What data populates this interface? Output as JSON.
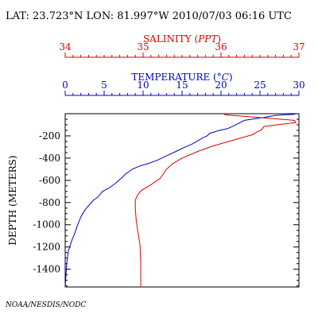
{
  "header": {
    "position_line": "LAT: 23.723°N LON: 81.997°W 2010/07/03 06:16 UTC"
  },
  "footer": {
    "credit": "NOAA/NESDIS/NODC"
  },
  "colors": {
    "salinity": "#dd0000",
    "temperature": "#0000cc",
    "frame": "#000000"
  },
  "chart_data": {
    "type": "line",
    "title": "LAT: 23.723°N LON: 81.997°W 2010/07/03 06:16 UTC",
    "ylabel": "DEPTH (METERS)",
    "ylim": [
      0,
      1560
    ],
    "y_inverted": true,
    "y_ticks": [
      {
        "value": 200,
        "label": "-200"
      },
      {
        "value": 400,
        "label": "-400"
      },
      {
        "value": 600,
        "label": "-600"
      },
      {
        "value": 800,
        "label": "-800"
      },
      {
        "value": 1000,
        "label": "-1000"
      },
      {
        "value": 1200,
        "label": "-1200"
      },
      {
        "value": 1400,
        "label": "-1400"
      }
    ],
    "grid": false,
    "axes": {
      "salinity": {
        "label_prefix": "SALINITY (",
        "label_unit": "PPT",
        "label_suffix": ")",
        "range": [
          34,
          37
        ],
        "ticks": [
          "34",
          "35",
          "36",
          "37"
        ],
        "color": "#dd0000"
      },
      "temperature": {
        "label_prefix": "TEMPERATURE (",
        "label_unit": "°C",
        "label_suffix": ")",
        "range": [
          0,
          30
        ],
        "ticks": [
          "0",
          "5",
          "10",
          "15",
          "20",
          "25",
          "30"
        ],
        "color": "#0000cc"
      }
    },
    "series": [
      {
        "name": "TEMPERATURE",
        "axis": "temperature",
        "color": "#0000cc",
        "points": [
          [
            29.6,
            0
          ],
          [
            29.4,
            5
          ],
          [
            28.2,
            10
          ],
          [
            27.0,
            15
          ],
          [
            25.8,
            30
          ],
          [
            23.0,
            60
          ],
          [
            21.6,
            110
          ],
          [
            20.8,
            135
          ],
          [
            19.8,
            150
          ],
          [
            18.6,
            175
          ],
          [
            18.2,
            200
          ],
          [
            17.6,
            220
          ],
          [
            17.0,
            245
          ],
          [
            16.4,
            270
          ],
          [
            15.4,
            300
          ],
          [
            14.2,
            340
          ],
          [
            13.0,
            380
          ],
          [
            11.8,
            420
          ],
          [
            10.6,
            450
          ],
          [
            9.6,
            470
          ],
          [
            8.6,
            500
          ],
          [
            7.8,
            540
          ],
          [
            7.2,
            580
          ],
          [
            6.4,
            630
          ],
          [
            5.6,
            670
          ],
          [
            4.8,
            700
          ],
          [
            4.2,
            750
          ],
          [
            3.6,
            780
          ],
          [
            2.6,
            860
          ],
          [
            2.0,
            930
          ],
          [
            1.6,
            1000
          ],
          [
            1.2,
            1080
          ],
          [
            0.8,
            1150
          ],
          [
            0.4,
            1240
          ],
          [
            0.2,
            1340
          ],
          [
            0.1,
            1450
          ],
          [
            0.0,
            1560
          ]
        ]
      },
      {
        "name": "SALINITY",
        "axis": "salinity",
        "color": "#dd0000",
        "points": [
          [
            36.06,
            0
          ],
          [
            36.05,
            10
          ],
          [
            36.22,
            20
          ],
          [
            36.6,
            40
          ],
          [
            36.94,
            60
          ],
          [
            36.96,
            80
          ],
          [
            36.78,
            95
          ],
          [
            36.55,
            115
          ],
          [
            36.52,
            145
          ],
          [
            36.46,
            165
          ],
          [
            36.4,
            190
          ],
          [
            36.35,
            200
          ],
          [
            36.15,
            240
          ],
          [
            35.9,
            290
          ],
          [
            35.7,
            340
          ],
          [
            35.5,
            400
          ],
          [
            35.38,
            450
          ],
          [
            35.3,
            500
          ],
          [
            35.22,
            580
          ],
          [
            35.1,
            640
          ],
          [
            34.98,
            690
          ],
          [
            34.93,
            730
          ],
          [
            34.9,
            780
          ],
          [
            34.9,
            850
          ],
          [
            34.91,
            950
          ],
          [
            34.93,
            1050
          ],
          [
            34.96,
            1180
          ],
          [
            34.97,
            1350
          ],
          [
            34.97,
            1560
          ]
        ]
      }
    ]
  }
}
